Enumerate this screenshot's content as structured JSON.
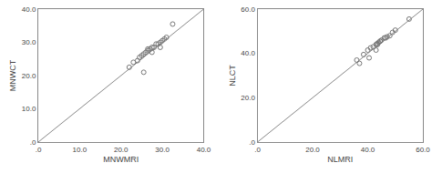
{
  "chart_data": [
    {
      "type": "scatter",
      "xlabel": "MNWMRI",
      "ylabel": "MNWCT",
      "xlim": [
        0,
        40.0
      ],
      "ylim": [
        0,
        40.0
      ],
      "xticks": [
        {
          "value": 0,
          "label": ".0"
        },
        {
          "value": 10.0,
          "label": "10.0"
        },
        {
          "value": 20.0,
          "label": "20.0"
        },
        {
          "value": 30.0,
          "label": "30.0"
        },
        {
          "value": 40.0,
          "label": "40.0"
        }
      ],
      "yticks": [
        {
          "value": 0,
          "label": ".0"
        },
        {
          "value": 10.0,
          "label": "10.0"
        },
        {
          "value": 20.0,
          "label": "20.0"
        },
        {
          "value": 30.0,
          "label": "30.0"
        },
        {
          "value": 40.0,
          "label": "40.0"
        }
      ],
      "grid": false,
      "series": [
        {
          "type": "line",
          "color": "#888888",
          "x": [
            0,
            40
          ],
          "values": [
            0,
            40
          ]
        },
        {
          "type": "scatter",
          "color": "#777777",
          "marker": "circle-open",
          "x": [
            22.0,
            23.0,
            24.0,
            24.5,
            25.0,
            25.5,
            26.0,
            26.5,
            27.0,
            27.5,
            28.0,
            28.5,
            29.0,
            29.5,
            30.0,
            30.5,
            31.0,
            32.5,
            25.5,
            27.5,
            29.5,
            26.5
          ],
          "values": [
            22.5,
            24.0,
            24.5,
            25.5,
            26.0,
            26.5,
            27.0,
            27.5,
            28.0,
            28.5,
            28.5,
            29.5,
            29.5,
            30.0,
            30.5,
            31.0,
            31.5,
            35.5,
            21.0,
            27.0,
            28.5,
            28.0
          ]
        }
      ]
    },
    {
      "type": "scatter",
      "xlabel": "NLMRI",
      "ylabel": "NLCT",
      "xlim": [
        0,
        60.0
      ],
      "ylim": [
        0,
        60.0
      ],
      "xticks": [
        {
          "value": 0,
          "label": ".0"
        },
        {
          "value": 20.0,
          "label": "20.0"
        },
        {
          "value": 40.0,
          "label": "40.0"
        },
        {
          "value": 60.0,
          "label": "60.0"
        }
      ],
      "yticks": [
        {
          "value": 0,
          "label": ".0"
        },
        {
          "value": 20.0,
          "label": "20.0"
        },
        {
          "value": 40.0,
          "label": "40.0"
        },
        {
          "value": 60.0,
          "label": "60.0"
        }
      ],
      "grid": false,
      "series": [
        {
          "type": "line",
          "color": "#888888",
          "x": [
            0,
            60
          ],
          "values": [
            0,
            60
          ]
        },
        {
          "type": "scatter",
          "color": "#777777",
          "marker": "circle-open",
          "x": [
            36.0,
            38.5,
            40.0,
            41.0,
            42.0,
            43.0,
            43.5,
            44.0,
            44.5,
            45.0,
            46.0,
            47.0,
            48.0,
            49.0,
            55.0,
            40.5,
            43.0,
            44.5,
            46.5,
            50.0,
            37.0,
            43.5
          ],
          "values": [
            37.0,
            39.5,
            41.5,
            42.5,
            43.0,
            44.0,
            44.5,
            45.0,
            45.5,
            46.0,
            47.0,
            47.5,
            48.0,
            49.5,
            55.5,
            38.0,
            41.5,
            45.5,
            47.0,
            50.5,
            35.5,
            44.0
          ]
        }
      ]
    }
  ]
}
